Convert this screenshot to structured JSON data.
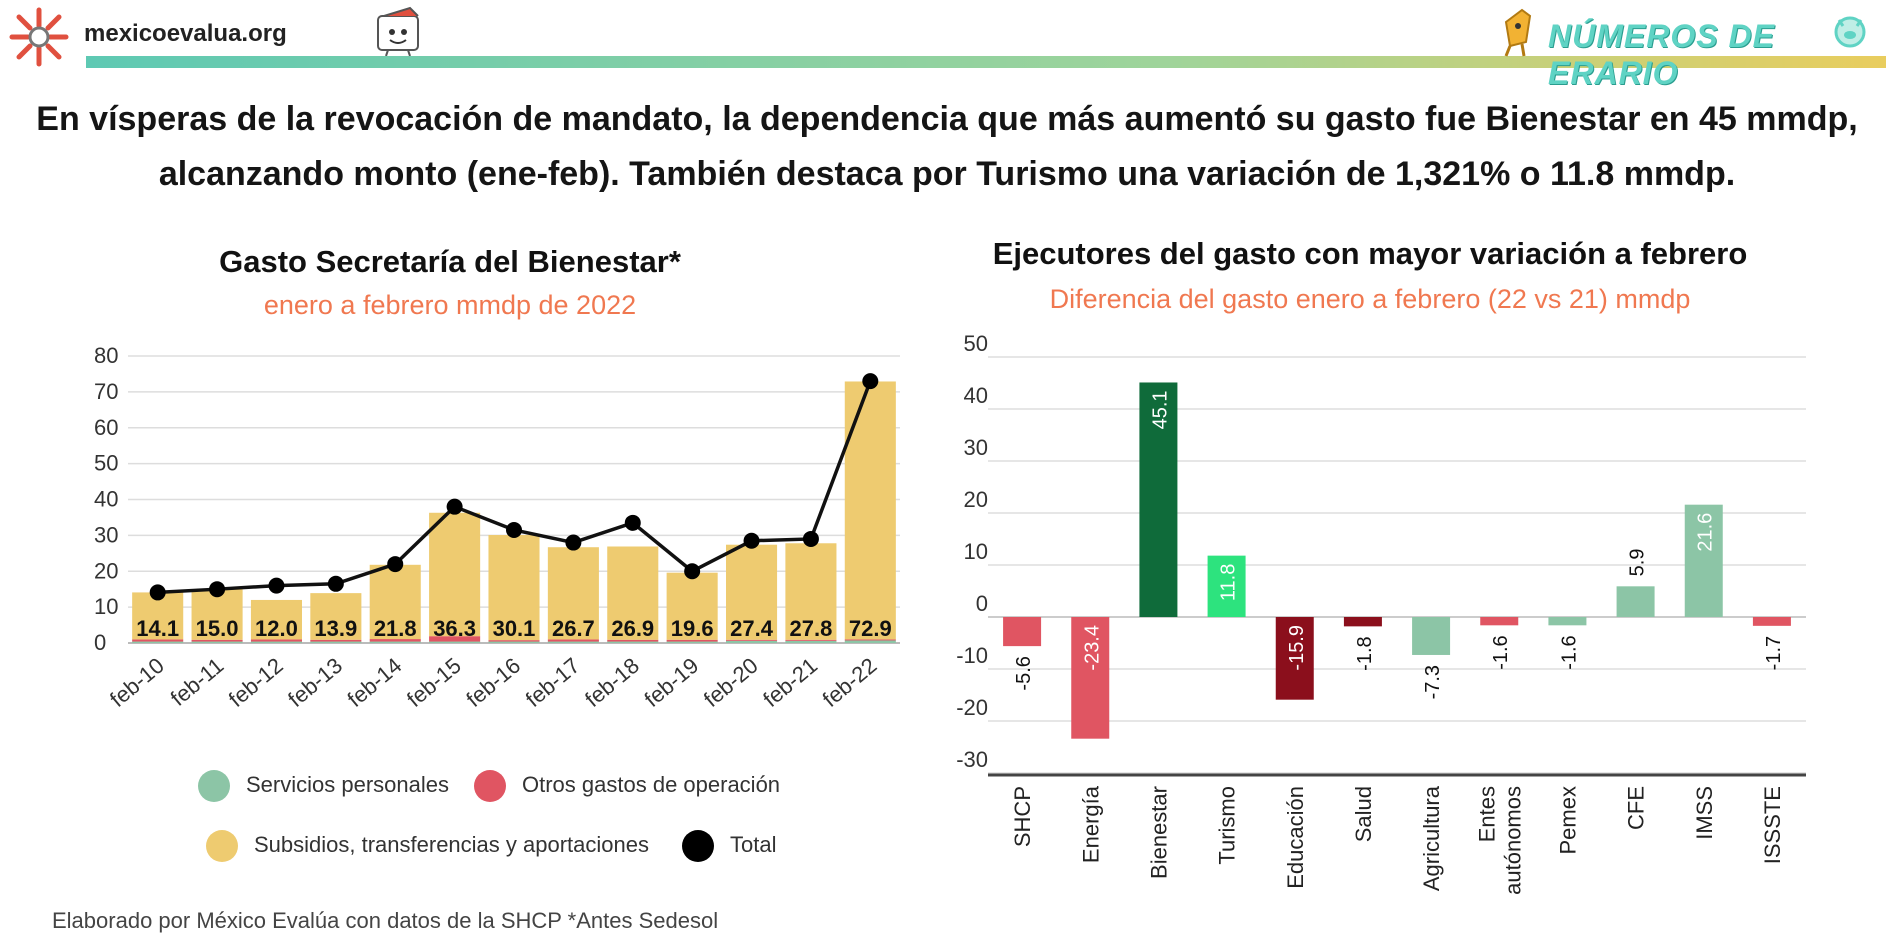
{
  "header": {
    "site": "mexicoevalua.org",
    "brand": "NÚMEROS DE ERARIO"
  },
  "headline": {
    "line1": "En vísperas de la revocación de mandato, la dependencia que más aumentó su gasto fue Bienestar en 45 mmdp,",
    "line2": "alcanzando monto (ene-feb). También destaca por Turismo una variación de 1,321% o 11.8 mmdp."
  },
  "left_chart": {
    "title": "Gasto Secretaría del Bienestar*",
    "subtitle": "enero a febrero mmdp de 2022"
  },
  "right_chart": {
    "title": "Ejecutores del gasto con mayor variación a febrero",
    "subtitle": "Diferencia del gasto enero a febrero (22 vs 21) mmdp"
  },
  "legend": {
    "servicios": "Servicios personales",
    "otros": "Otros gastos de operación",
    "subsidios": "Subsidios, transferencias y aportaciones",
    "total": "Total"
  },
  "footer": "Elaborado por México Evalúa con datos de la SHCP  *Antes Sedesol",
  "colors": {
    "servicios": "#8cc5a6",
    "otros": "#e05562",
    "subsidios": "#eecb70",
    "total": "#000000",
    "neg_light": "#e05562",
    "neg_dark": "#8b0f1c",
    "pos_light": "#8cc5a6",
    "pos_dark": "#0f6b3a",
    "pos_bright": "#2de37e",
    "subtitle": "#f07850"
  },
  "chart_data": [
    {
      "type": "bar",
      "stacked": true,
      "title": "Gasto Secretaría del Bienestar*",
      "subtitle": "enero a febrero mmdp de 2022",
      "categories": [
        "feb-10",
        "feb-11",
        "feb-12",
        "feb-13",
        "feb-14",
        "feb-15",
        "feb-16",
        "feb-17",
        "feb-18",
        "feb-19",
        "feb-20",
        "feb-21",
        "feb-22"
      ],
      "series": [
        {
          "name": "Servicios personales",
          "values": [
            0.4,
            0.4,
            0.4,
            0.4,
            0.4,
            0.4,
            0.4,
            0.4,
            0.4,
            0.4,
            0.6,
            0.6,
            0.7
          ]
        },
        {
          "name": "Otros gastos de operación",
          "values": [
            0.6,
            0.5,
            0.6,
            0.5,
            0.7,
            1.5,
            0.4,
            0.6,
            0.5,
            0.5,
            0.3,
            0.3,
            0.3
          ]
        },
        {
          "name": "Subsidios, transferencias y aportaciones",
          "values": [
            13.1,
            14.1,
            11.0,
            13.0,
            20.7,
            34.4,
            29.3,
            25.7,
            26.0,
            18.7,
            26.5,
            26.9,
            71.9
          ]
        }
      ],
      "total": {
        "name": "Total",
        "values": [
          14.1,
          15.0,
          12.0,
          13.9,
          21.8,
          36.3,
          30.1,
          26.7,
          26.9,
          19.6,
          27.4,
          27.8,
          72.9
        ]
      },
      "data_labels": [
        "14.1",
        "15.0",
        "12.0",
        "13.9",
        "21.8",
        "36.3",
        "30.1",
        "26.7",
        "26.9",
        "19.6",
        "27.4",
        "27.8",
        "72.9"
      ],
      "line_values": [
        14.1,
        15.0,
        16.0,
        16.5,
        22.0,
        38.0,
        31.5,
        28.0,
        33.5,
        20.0,
        28.5,
        29.0,
        73.0
      ],
      "ylim": [
        0,
        80
      ],
      "yticks": [
        0,
        10,
        20,
        30,
        40,
        50,
        60,
        70,
        80
      ],
      "xlabel": "",
      "ylabel": "",
      "grid": true,
      "legend": "bottom"
    },
    {
      "type": "bar",
      "title": "Ejecutores del gasto con mayor variación a febrero",
      "subtitle": "Diferencia del gasto enero a febrero (22 vs 21) mmdp",
      "categories": [
        "SHCP",
        "Energía",
        "Bienestar",
        "Turismo",
        "Educación",
        "Salud",
        "Agricultura",
        "Entes autónomos",
        "Pemex",
        "CFE",
        "IMSS",
        "ISSSTE"
      ],
      "values": [
        -5.6,
        -23.4,
        45.1,
        11.8,
        -15.9,
        -1.8,
        -7.3,
        -1.6,
        -1.6,
        5.9,
        21.6,
        -1.7
      ],
      "bar_colors": [
        "#e05562",
        "#e05562",
        "#0f6b3a",
        "#2de37e",
        "#8b0f1c",
        "#8b0f1c",
        "#8cc5a6",
        "#e05562",
        "#8cc5a6",
        "#8cc5a6",
        "#8cc5a6",
        "#e05562"
      ],
      "ylim": [
        -30,
        50
      ],
      "yticks": [
        -30,
        -20,
        -10,
        0,
        10,
        20,
        30,
        40,
        50
      ],
      "xlabel": "",
      "ylabel": "",
      "grid": true
    }
  ]
}
